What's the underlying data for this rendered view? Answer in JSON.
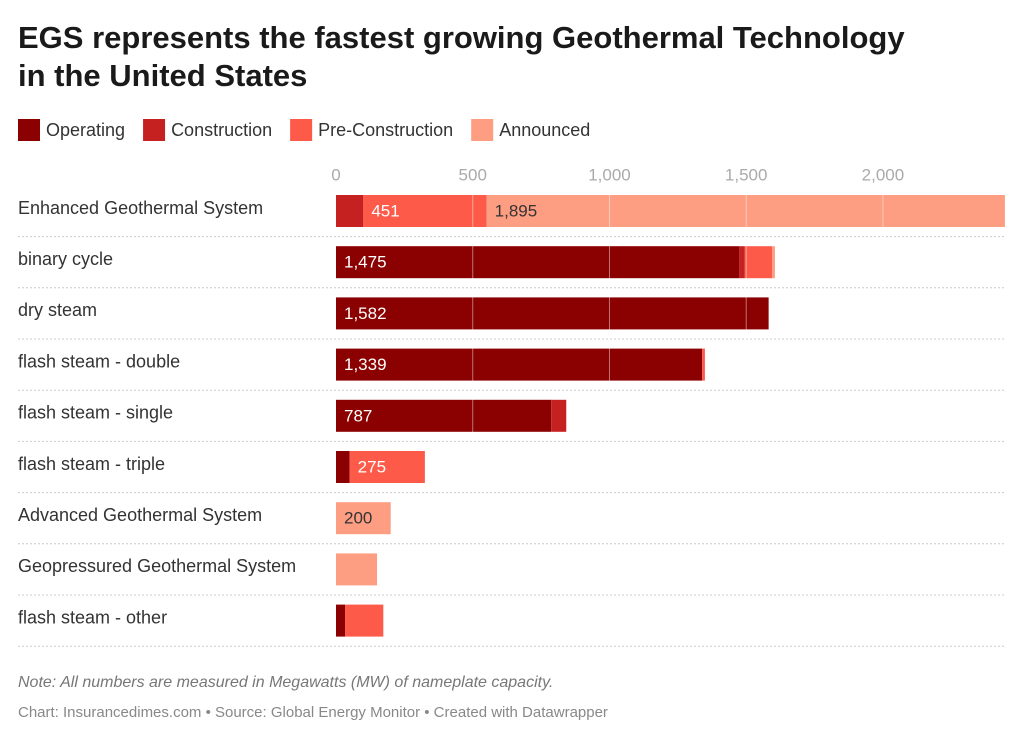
{
  "chart_data": {
    "type": "bar",
    "orientation": "horizontal",
    "stacked": true,
    "title_lines": [
      "EGS represents the fastest growing Geothermal Technology",
      "in the United States"
    ],
    "categories": [
      "Enhanced Geothermal System",
      "binary cycle",
      "dry steam",
      "flash steam - double",
      "flash steam - single",
      "flash steam - triple",
      "Advanced Geothermal System",
      "Geopressured Geothermal System",
      "flash steam - other"
    ],
    "series": [
      {
        "name": "Operating",
        "color": "#8b0000",
        "values": [
          0,
          1475,
          1582,
          1339,
          787,
          50,
          0,
          0,
          33
        ],
        "value_labels": [
          null,
          "1,475",
          "1,582",
          "1,339",
          "787",
          null,
          null,
          null,
          null
        ]
      },
      {
        "name": "Construction",
        "color": "#c62121",
        "values": [
          100,
          20,
          0,
          0,
          55,
          0,
          0,
          0,
          0
        ],
        "value_labels": [
          null,
          null,
          null,
          null,
          null,
          null,
          null,
          null,
          null
        ]
      },
      {
        "name": "Pre-Construction",
        "color": "#fd5a4a",
        "values": [
          451,
          100,
          0,
          10,
          0,
          275,
          0,
          0,
          140
        ],
        "value_labels": [
          "451",
          null,
          null,
          null,
          null,
          "275",
          null,
          null,
          null
        ]
      },
      {
        "name": "Announced",
        "color": "#fd9d82",
        "values": [
          1895,
          10,
          0,
          0,
          0,
          0,
          200,
          150,
          0
        ],
        "value_labels": [
          "1,895",
          null,
          null,
          null,
          null,
          null,
          "200",
          null,
          null
        ]
      }
    ],
    "xlim": [
      0,
      2450
    ],
    "xticks": [
      0,
      500,
      {
        "value": 1000,
        "label": "1,000"
      },
      {
        "value": 1500,
        "label": "1,500"
      },
      {
        "value": 2000,
        "label": "2,000"
      }
    ],
    "grid": true,
    "note": "Note: All numbers are measured in Megawatts (MW) of nameplate capacity.",
    "footer": "Chart: Insurancedimes.com • Source: Global Energy Monitor • Created with Datawrapper"
  }
}
